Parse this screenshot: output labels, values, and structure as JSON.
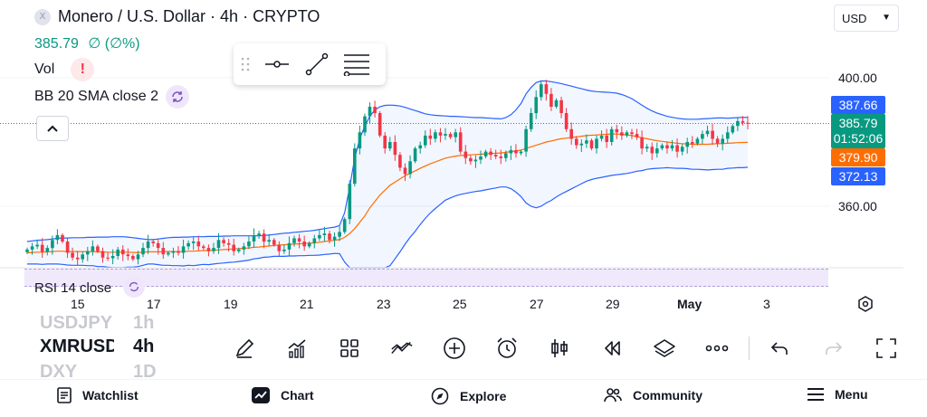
{
  "header": {
    "symbol_title": "Monero / U.S. Dollar · 4h · CRYPTO",
    "price": "385.79",
    "change": "∅ (∅%)",
    "vol_label": "Vol",
    "vol_warning": "!",
    "indicator_label": "BB 20 SMA close 2",
    "currency": "USD"
  },
  "price_scale": {
    "ticks": [
      "400.00",
      "360.00"
    ],
    "tags": {
      "bb_upper": "387.66",
      "last_price": "385.79",
      "countdown": "01:52:06",
      "bb_basis": "379.90",
      "bb_lower": "372.13"
    }
  },
  "date_axis": [
    "15",
    "17",
    "19",
    "21",
    "23",
    "25",
    "27",
    "29",
    "May",
    "3"
  ],
  "rsi": {
    "label": "RSI 14 close"
  },
  "symbol_list": {
    "prev": "USDJPY",
    "prev_tf": "1h",
    "current": "XMRUSD",
    "current_tf": "4h",
    "next": "DXY",
    "next_tf": "1D"
  },
  "toolbar_icons": [
    "pencil-icon",
    "indicators-icon",
    "layouts-icon",
    "compare-icon",
    "add-icon",
    "alert-icon",
    "candle-type-icon",
    "replay-icon",
    "layers-icon",
    "more-icon",
    "undo-icon",
    "redo-icon",
    "fullscreen-icon"
  ],
  "navigation": {
    "items": [
      {
        "label": "Watchlist",
        "icon": "watchlist-icon"
      },
      {
        "label": "Chart",
        "icon": "chart-icon"
      },
      {
        "label": "Explore",
        "icon": "compass-icon"
      },
      {
        "label": "Community",
        "icon": "community-icon"
      },
      {
        "label": "Menu",
        "icon": "menu-icon"
      }
    ]
  },
  "colors": {
    "up": "#089981",
    "down": "#f23645",
    "bb_band": "#2962ff",
    "bb_basis": "#ff6d00",
    "countdown_bg": "#089981"
  },
  "chart_data": {
    "type": "candlestick",
    "ylim": [
      352,
      410
    ],
    "y_ticks": [
      400,
      360
    ],
    "x_ticks": [
      "15",
      "17",
      "19",
      "21",
      "23",
      "25",
      "27",
      "29",
      "May",
      "3"
    ],
    "last_price": 385.79,
    "indicator": "BB 20 SMA close 2",
    "closes": [
      346.5,
      347.5,
      348.0,
      345.8,
      347.0,
      349.5,
      351.0,
      349.0,
      345.5,
      344.0,
      343.5,
      345.0,
      346.0,
      347.5,
      346.0,
      344.0,
      343.8,
      344.5,
      346.5,
      345.0,
      344.5,
      343.5,
      345.0,
      347.0,
      349.0,
      348.5,
      347.0,
      345.0,
      345.5,
      346.0,
      345.5,
      347.5,
      348.5,
      349.0,
      347.5,
      347.0,
      346.0,
      347.0,
      349.5,
      348.5,
      348.0,
      346.0,
      346.5,
      347.5,
      349.0,
      351.0,
      351.5,
      349.0,
      349.5,
      348.0,
      346.0,
      346.5,
      348.5,
      350.0,
      349.0,
      347.5,
      348.5,
      350.0,
      351.0,
      351.5,
      349.5,
      350.5,
      352.0,
      356.0,
      367.0,
      378.0,
      383.0,
      388.0,
      391.0,
      389.0,
      382.0,
      378.0,
      380.0,
      376.0,
      372.0,
      370.0,
      374.0,
      378.0,
      379.0,
      382.0,
      381.0,
      383.0,
      382.0,
      382.5,
      381.5,
      383.0,
      377.0,
      375.0,
      374.0,
      374.5,
      375.5,
      377.0,
      376.0,
      375.5,
      375.0,
      376.5,
      377.5,
      376.5,
      377.0,
      384.0,
      389.0,
      394.0,
      398.0,
      395.0,
      391.0,
      393.0,
      389.0,
      384.0,
      381.0,
      379.0,
      379.5,
      380.5,
      378.0,
      381.0,
      382.0,
      380.0,
      384.0,
      383.0,
      382.0,
      383.0,
      382.5,
      381.5,
      378.0,
      378.5,
      376.5,
      378.0,
      379.0,
      378.0,
      379.0,
      377.0,
      378.5,
      380.0,
      379.5,
      381.0,
      382.5,
      383.5,
      381.0,
      379.5,
      381.0,
      383.0,
      385.0,
      386.5,
      386.0,
      385.79
    ],
    "bb_upper": [
      349.0,
      349.2,
      349.4,
      349.5,
      349.6,
      349.8,
      350.0,
      350.1,
      350.1,
      350.2,
      350.2,
      350.2,
      350.3,
      350.3,
      350.4,
      350.4,
      350.4,
      350.5,
      350.5,
      350.5,
      350.4,
      350.2,
      350.0,
      349.8,
      349.6,
      349.6,
      349.8,
      350.0,
      350.2,
      350.3,
      350.3,
      350.4,
      350.4,
      350.5,
      350.5,
      350.5,
      350.6,
      350.6,
      350.6,
      350.7,
      350.7,
      350.8,
      350.8,
      350.8,
      350.8,
      350.8,
      350.8,
      350.9,
      351.0,
      351.2,
      351.4,
      351.6,
      351.7,
      351.9,
      352.0,
      352.2,
      352.3,
      352.5,
      352.8,
      353.0,
      353.3,
      353.5,
      354.0,
      358.0,
      366.0,
      375.0,
      381.0,
      385.0,
      388.0,
      390.0,
      391.0,
      391.4,
      391.5,
      391.4,
      391.2,
      390.8,
      390.3,
      389.8,
      389.3,
      388.8,
      388.5,
      388.3,
      388.2,
      388.1,
      388.0,
      388.0,
      387.9,
      387.8,
      387.7,
      387.6,
      387.6,
      387.5,
      387.4,
      387.3,
      387.2,
      387.6,
      388.5,
      390.0,
      392.0,
      395.0,
      397.0,
      398.5,
      399.0,
      399.0,
      398.8,
      398.5,
      398.2,
      397.8,
      397.4,
      397.0,
      396.6,
      396.2,
      395.9,
      395.7,
      395.6,
      395.5,
      395.4,
      395.2,
      394.8,
      394.2,
      393.5,
      392.5,
      391.5,
      390.5,
      389.7,
      389.0,
      388.5,
      388.0,
      387.7,
      387.4,
      387.2,
      387.1,
      387.1,
      387.1,
      387.2,
      387.3,
      387.4,
      387.5,
      387.5,
      387.4,
      387.5,
      387.6,
      387.7,
      387.66
    ],
    "bb_basis": [
      345.5,
      345.6,
      345.7,
      345.7,
      345.8,
      345.9,
      346.0,
      346.0,
      345.9,
      345.9,
      345.9,
      345.9,
      345.9,
      345.9,
      345.8,
      345.8,
      345.7,
      345.7,
      345.7,
      345.7,
      345.7,
      345.6,
      345.6,
      345.7,
      345.8,
      345.8,
      345.8,
      345.8,
      345.9,
      345.9,
      345.9,
      345.9,
      346.0,
      346.0,
      346.1,
      346.2,
      346.2,
      346.3,
      346.4,
      346.5,
      346.6,
      346.7,
      346.8,
      346.9,
      347.0,
      347.2,
      347.3,
      347.5,
      347.6,
      347.8,
      347.9,
      348.0,
      348.1,
      348.2,
      348.3,
      348.4,
      348.5,
      348.6,
      348.8,
      349.0,
      349.2,
      349.4,
      349.6,
      350.3,
      351.5,
      353.0,
      355.0,
      357.0,
      359.5,
      361.5,
      363.5,
      365.0,
      366.5,
      367.5,
      368.5,
      369.5,
      370.3,
      371.0,
      371.8,
      372.5,
      373.2,
      373.8,
      374.4,
      375.0,
      375.3,
      375.6,
      375.8,
      375.9,
      376.0,
      376.1,
      376.2,
      376.3,
      376.4,
      376.5,
      376.6,
      376.8,
      377.0,
      377.2,
      377.5,
      378.0,
      378.5,
      379.0,
      379.5,
      380.0,
      380.3,
      380.7,
      381.0,
      381.2,
      381.4,
      381.6,
      381.8,
      382.0,
      382.1,
      382.2,
      382.3,
      382.4,
      382.5,
      382.5,
      382.4,
      382.2,
      382.0,
      381.7,
      381.3,
      381.0,
      380.7,
      380.4,
      380.2,
      380.0,
      379.8,
      379.6,
      379.5,
      379.4,
      379.3,
      379.3,
      379.3,
      379.3,
      379.4,
      379.5,
      379.5,
      379.6,
      379.7,
      379.8,
      379.85,
      379.9
    ],
    "bb_lower": [
      342.0,
      342.0,
      342.0,
      341.9,
      342.0,
      342.0,
      342.0,
      341.9,
      341.7,
      341.6,
      341.6,
      341.6,
      341.5,
      341.5,
      341.2,
      341.2,
      341.0,
      340.9,
      340.9,
      340.9,
      341.0,
      341.0,
      341.2,
      341.6,
      342.0,
      342.0,
      341.8,
      341.6,
      341.6,
      341.5,
      341.5,
      341.4,
      341.6,
      341.5,
      341.7,
      341.9,
      341.8,
      342.0,
      342.2,
      342.3,
      342.5,
      342.6,
      342.8,
      343.0,
      343.2,
      343.6,
      343.8,
      344.1,
      344.2,
      344.4,
      344.4,
      344.4,
      344.5,
      344.5,
      344.6,
      344.6,
      344.7,
      344.7,
      344.8,
      345.0,
      345.1,
      345.3,
      345.2,
      342.6,
      337.0,
      331.0,
      329.0,
      329.0,
      331.0,
      333.0,
      336.0,
      338.6,
      341.5,
      343.6,
      345.8,
      348.2,
      350.3,
      352.2,
      354.3,
      356.2,
      357.9,
      359.3,
      360.6,
      361.9,
      362.6,
      363.2,
      363.7,
      364.0,
      364.3,
      364.6,
      364.8,
      365.1,
      365.4,
      365.7,
      366.0,
      366.0,
      365.5,
      364.4,
      363.0,
      361.0,
      360.0,
      359.5,
      360.0,
      361.0,
      361.8,
      362.9,
      363.8,
      364.6,
      365.4,
      366.2,
      367.0,
      367.8,
      368.3,
      368.7,
      369.0,
      369.3,
      369.6,
      369.8,
      370.0,
      370.2,
      370.5,
      370.9,
      371.1,
      371.5,
      371.7,
      371.8,
      371.9,
      372.0,
      371.9,
      371.8,
      371.8,
      371.7,
      371.5,
      371.5,
      371.4,
      371.3,
      371.4,
      371.5,
      371.5,
      371.8,
      371.9,
      372.0,
      372.0,
      372.13
    ]
  }
}
